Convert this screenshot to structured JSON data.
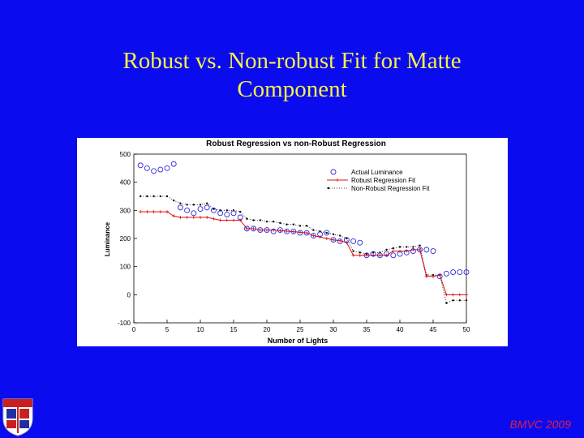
{
  "slide": {
    "title_line1": "Robust vs. Non-robust Fit for Matte",
    "title_line2": "Component",
    "footer": "BMVC 2009"
  },
  "colors": {
    "background": "#0b0bf0",
    "title": "#f5f047",
    "footer": "#e0213a",
    "actual": "#2b2bd8",
    "robust": "#e01010",
    "nonrobust": "#000000"
  },
  "chart_data": {
    "type": "line",
    "title": "Robust Regression vs non-Robust Regression",
    "xlabel": "Number of Lights",
    "ylabel": "Luminance",
    "xlim": [
      0,
      50
    ],
    "ylim": [
      -100,
      500
    ],
    "xticks": [
      "0",
      "5",
      "10",
      "15",
      "20",
      "25",
      "30",
      "35",
      "40",
      "45",
      "50"
    ],
    "yticks": [
      "-100",
      "0",
      "100",
      "200",
      "300",
      "400",
      "500"
    ],
    "grid": false,
    "legend_position": "top-right",
    "x": [
      1,
      2,
      3,
      4,
      5,
      6,
      7,
      8,
      9,
      10,
      11,
      12,
      13,
      14,
      15,
      16,
      17,
      18,
      19,
      20,
      21,
      22,
      23,
      24,
      25,
      26,
      27,
      28,
      29,
      30,
      31,
      32,
      33,
      34,
      35,
      36,
      37,
      38,
      39,
      40,
      41,
      42,
      43,
      44,
      45,
      46,
      47,
      48,
      49,
      50
    ],
    "series": [
      {
        "name": "Actual Luminance",
        "style": "markers",
        "values": [
          460,
          450,
          440,
          445,
          450,
          465,
          310,
          300,
          290,
          305,
          310,
          300,
          290,
          285,
          290,
          275,
          235,
          235,
          230,
          230,
          225,
          230,
          225,
          225,
          220,
          220,
          210,
          215,
          220,
          195,
          190,
          195,
          190,
          185,
          140,
          145,
          140,
          145,
          140,
          145,
          150,
          155,
          160,
          160,
          155,
          65,
          75,
          80,
          80,
          80
        ]
      },
      {
        "name": "Robust Regression Fit",
        "style": "line",
        "values": [
          295,
          295,
          295,
          295,
          295,
          280,
          275,
          275,
          275,
          275,
          275,
          270,
          265,
          265,
          265,
          265,
          235,
          235,
          230,
          230,
          230,
          228,
          226,
          224,
          222,
          220,
          210,
          205,
          200,
          195,
          192,
          185,
          140,
          140,
          140,
          140,
          140,
          140,
          155,
          155,
          155,
          160,
          160,
          65,
          65,
          70,
          0,
          0,
          0,
          0
        ]
      },
      {
        "name": "Non-Robust Regression Fit",
        "style": "dotted",
        "values": [
          350,
          350,
          350,
          350,
          350,
          335,
          325,
          320,
          320,
          320,
          325,
          305,
          300,
          300,
          300,
          295,
          270,
          265,
          265,
          260,
          260,
          255,
          250,
          250,
          245,
          245,
          230,
          225,
          220,
          215,
          210,
          200,
          155,
          150,
          145,
          150,
          150,
          160,
          165,
          170,
          170,
          170,
          175,
          70,
          70,
          70,
          -30,
          -20,
          -20,
          -20
        ]
      }
    ]
  }
}
